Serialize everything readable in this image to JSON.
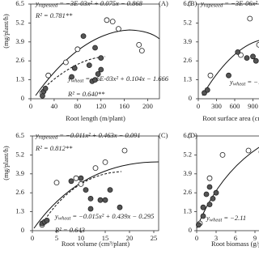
{
  "chart_data": [
    {
      "type": "scatter",
      "panel": "(A)",
      "ylabel": "(mg/plant/h)",
      "xlabel": "Root length (m/plant)",
      "xlim": [
        0,
        220
      ],
      "xticks": [
        0,
        40,
        80,
        120,
        160,
        200
      ],
      "ylim": [
        0,
        6.5
      ],
      "yticks": [
        0,
        1.3,
        2.6,
        3.9,
        5.2,
        6.5
      ],
      "annotations": [
        {
          "var": "y",
          "sub": "rapeseed",
          "eq": "= −3E-03x² + 0.075x − 0.868"
        },
        {
          "var": "R² = 0.781**"
        },
        {
          "var": "y",
          "sub": "wheat",
          "eq": "= −6E-03x² + 0.104x − 1.666"
        },
        {
          "var": "R² = 0.640**"
        }
      ],
      "series": [
        {
          "name": "rapeseed",
          "color": "#ffffff",
          "x": [
            20,
            30,
            60,
            80,
            130,
            140,
            150,
            185,
            190
          ],
          "values": [
            0.4,
            1.6,
            2.5,
            3.4,
            5.4,
            5.3,
            4.8,
            3.7,
            3.3
          ]
        },
        {
          "name": "wheat",
          "color": "#555555",
          "x": [
            20,
            22,
            25,
            70,
            75,
            90,
            100,
            105,
            110,
            115,
            120,
            110,
            120
          ],
          "values": [
            0.2,
            0.5,
            0.7,
            1.5,
            2.1,
            4.3,
            2.3,
            1.2,
            1.3,
            1.7,
            2.0,
            3.5,
            2.8
          ]
        }
      ]
    },
    {
      "type": "scatter",
      "panel": "(B)",
      "xlabel": "Root surface area (cm²/plant)",
      "xlim": [
        0,
        1200
      ],
      "xticks": [
        0,
        300,
        600,
        900
      ],
      "ylim": [
        0,
        6.5
      ],
      "yticks": [
        0,
        1.3,
        2.6,
        3.9,
        5.2,
        6.5
      ],
      "annotations": [
        {
          "var": "y",
          "sub": "rapeseed",
          "eq": "= −3E-06x²"
        },
        {
          "var": "y",
          "sub": "wheat",
          "eq": "= −1."
        }
      ],
      "series": [
        {
          "name": "rapeseed",
          "color": "#ffffff",
          "x": [
            200,
            700,
            850,
            1000
          ],
          "values": [
            1.6,
            3.0,
            5.5,
            3.7
          ]
        },
        {
          "name": "wheat",
          "color": "#555555",
          "x": [
            100,
            150,
            500,
            650,
            800,
            900,
            950
          ],
          "values": [
            0.4,
            0.6,
            1.6,
            3.2,
            2.8,
            2.9,
            2.6
          ]
        }
      ]
    },
    {
      "type": "scatter",
      "panel": "(C)",
      "ylabel": "(mg/plant/h)",
      "xlabel": "Root volume (cm³/plant)",
      "xlim": [
        0,
        26
      ],
      "xticks": [
        0,
        5,
        10,
        15,
        20,
        25
      ],
      "ylim": [
        0,
        6.5
      ],
      "yticks": [
        0,
        1.3,
        2.6,
        3.9,
        5.2,
        6.5
      ],
      "annotations": [
        {
          "var": "y",
          "sub": "rapeseed",
          "eq": "= −0.011x² + 0.463x − 0.091"
        },
        {
          "var": "R² = 0.812**"
        },
        {
          "var": "y",
          "sub": "wheat",
          "eq": "= −0.015x² + 0.439x − 0.295"
        },
        {
          "var": "R² = 0.643"
        }
      ],
      "series": [
        {
          "name": "rapeseed",
          "color": "#ffffff",
          "x": [
            2,
            5,
            9,
            10,
            13,
            15,
            19
          ],
          "values": [
            0.4,
            3.3,
            3.6,
            3.2,
            4.3,
            4.7,
            5.5
          ]
        },
        {
          "name": "wheat",
          "color": "#555555",
          "x": [
            2,
            2.5,
            3,
            8,
            10,
            11,
            12,
            12,
            14,
            15,
            16,
            18
          ],
          "values": [
            0.5,
            0.6,
            0.7,
            3.4,
            3.6,
            2.8,
            2.2,
            1.5,
            2.1,
            2.1,
            2.8,
            1.6
          ]
        }
      ]
    },
    {
      "type": "scatter",
      "panel": "(D)",
      "xlabel": "Root biomass (g/plant)",
      "xlim": [
        0,
        12
      ],
      "xticks": [
        0,
        3,
        6,
        9
      ],
      "ylim": [
        0,
        6.5
      ],
      "yticks": [
        0,
        1.3,
        2.6,
        3.9,
        5.2,
        6.5
      ],
      "annotations": [
        {
          "var": "y",
          "sub": "wheat",
          "eq": "= −2.11"
        }
      ],
      "series": [
        {
          "name": "rapeseed",
          "color": "#ffffff",
          "x": [
            0.5,
            2,
            4,
            8,
            10
          ],
          "values": [
            0.5,
            3.6,
            5.2,
            5.5,
            5.4
          ]
        },
        {
          "name": "wheat",
          "color": "#555555",
          "x": [
            0.3,
            1,
            1,
            1.5,
            2,
            2,
            2.5,
            3
          ],
          "values": [
            0.4,
            1.0,
            1.6,
            2.5,
            1.8,
            3.0,
            2.2,
            2.6
          ]
        }
      ]
    }
  ]
}
